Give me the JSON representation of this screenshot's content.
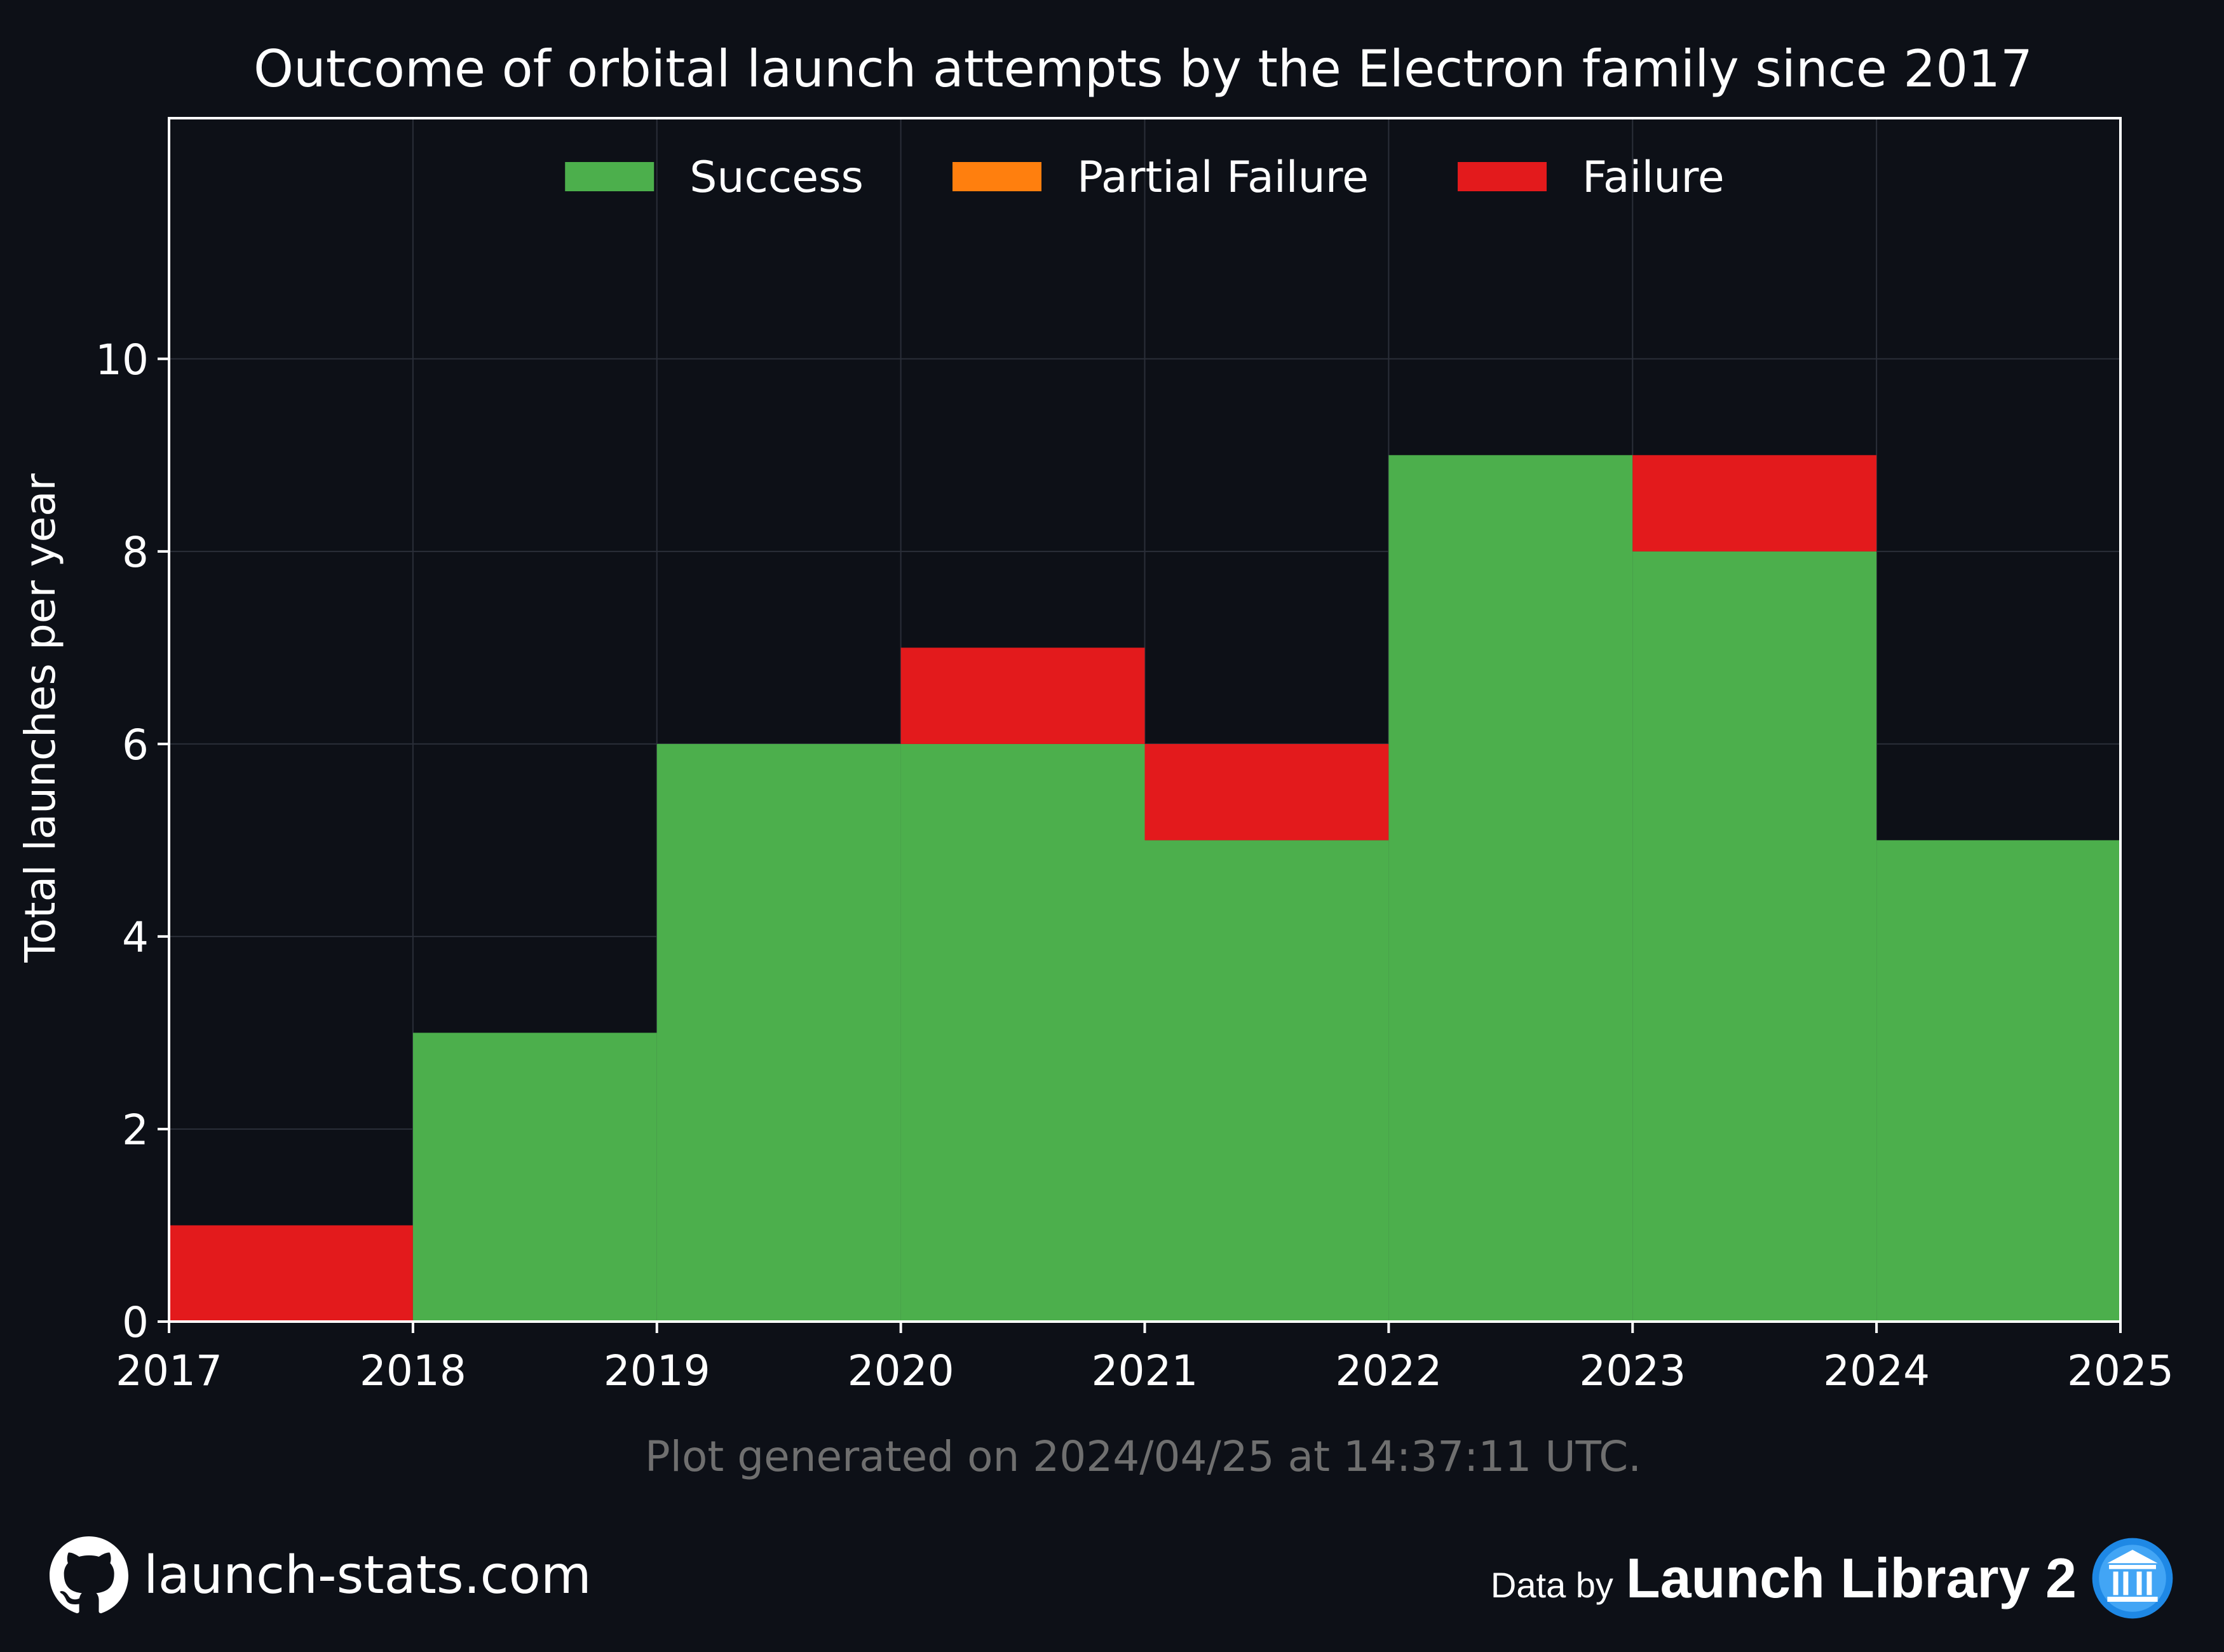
{
  "chart_data": {
    "type": "bar",
    "title": "Outcome of orbital launch attempts by the Electron family since 2017",
    "xlabel": "",
    "ylabel": "Total launches per year",
    "x_edges": [
      2017,
      2018,
      2019,
      2020,
      2021,
      2022,
      2023,
      2024,
      2025
    ],
    "categories": [
      "2017",
      "2018",
      "2019",
      "2020",
      "2021",
      "2022",
      "2023",
      "2024"
    ],
    "stacked": true,
    "series": [
      {
        "name": "Success",
        "color": "#4caf4c",
        "values": [
          0,
          3,
          6,
          6,
          5,
          9,
          8,
          5
        ]
      },
      {
        "name": "Partial Failure",
        "color": "#ff7f0e",
        "values": [
          0,
          0,
          0,
          0,
          0,
          0,
          0,
          0
        ]
      },
      {
        "name": "Failure",
        "color": "#e31a1c",
        "values": [
          1,
          0,
          0,
          1,
          1,
          0,
          1,
          0
        ]
      }
    ],
    "ylim": [
      0,
      12.5
    ],
    "yticks": [
      0,
      2,
      4,
      6,
      8,
      10
    ],
    "xticks": [
      "2017",
      "2018",
      "2019",
      "2020",
      "2021",
      "2022",
      "2023",
      "2024",
      "2025"
    ],
    "grid": true,
    "legend_position": "upper center",
    "note": "Plot generated on 2024/04/25 at 14:37:11 UTC."
  },
  "footer": {
    "site": "launch-stats.com",
    "data_by": "Data by",
    "source": "Launch Library 2"
  },
  "icons": {
    "left": "github-icon",
    "right": "launch-library-icon"
  },
  "colors": {
    "background": "#0d1017",
    "grid": "#2a2e38",
    "note": "#6f6f6f"
  }
}
